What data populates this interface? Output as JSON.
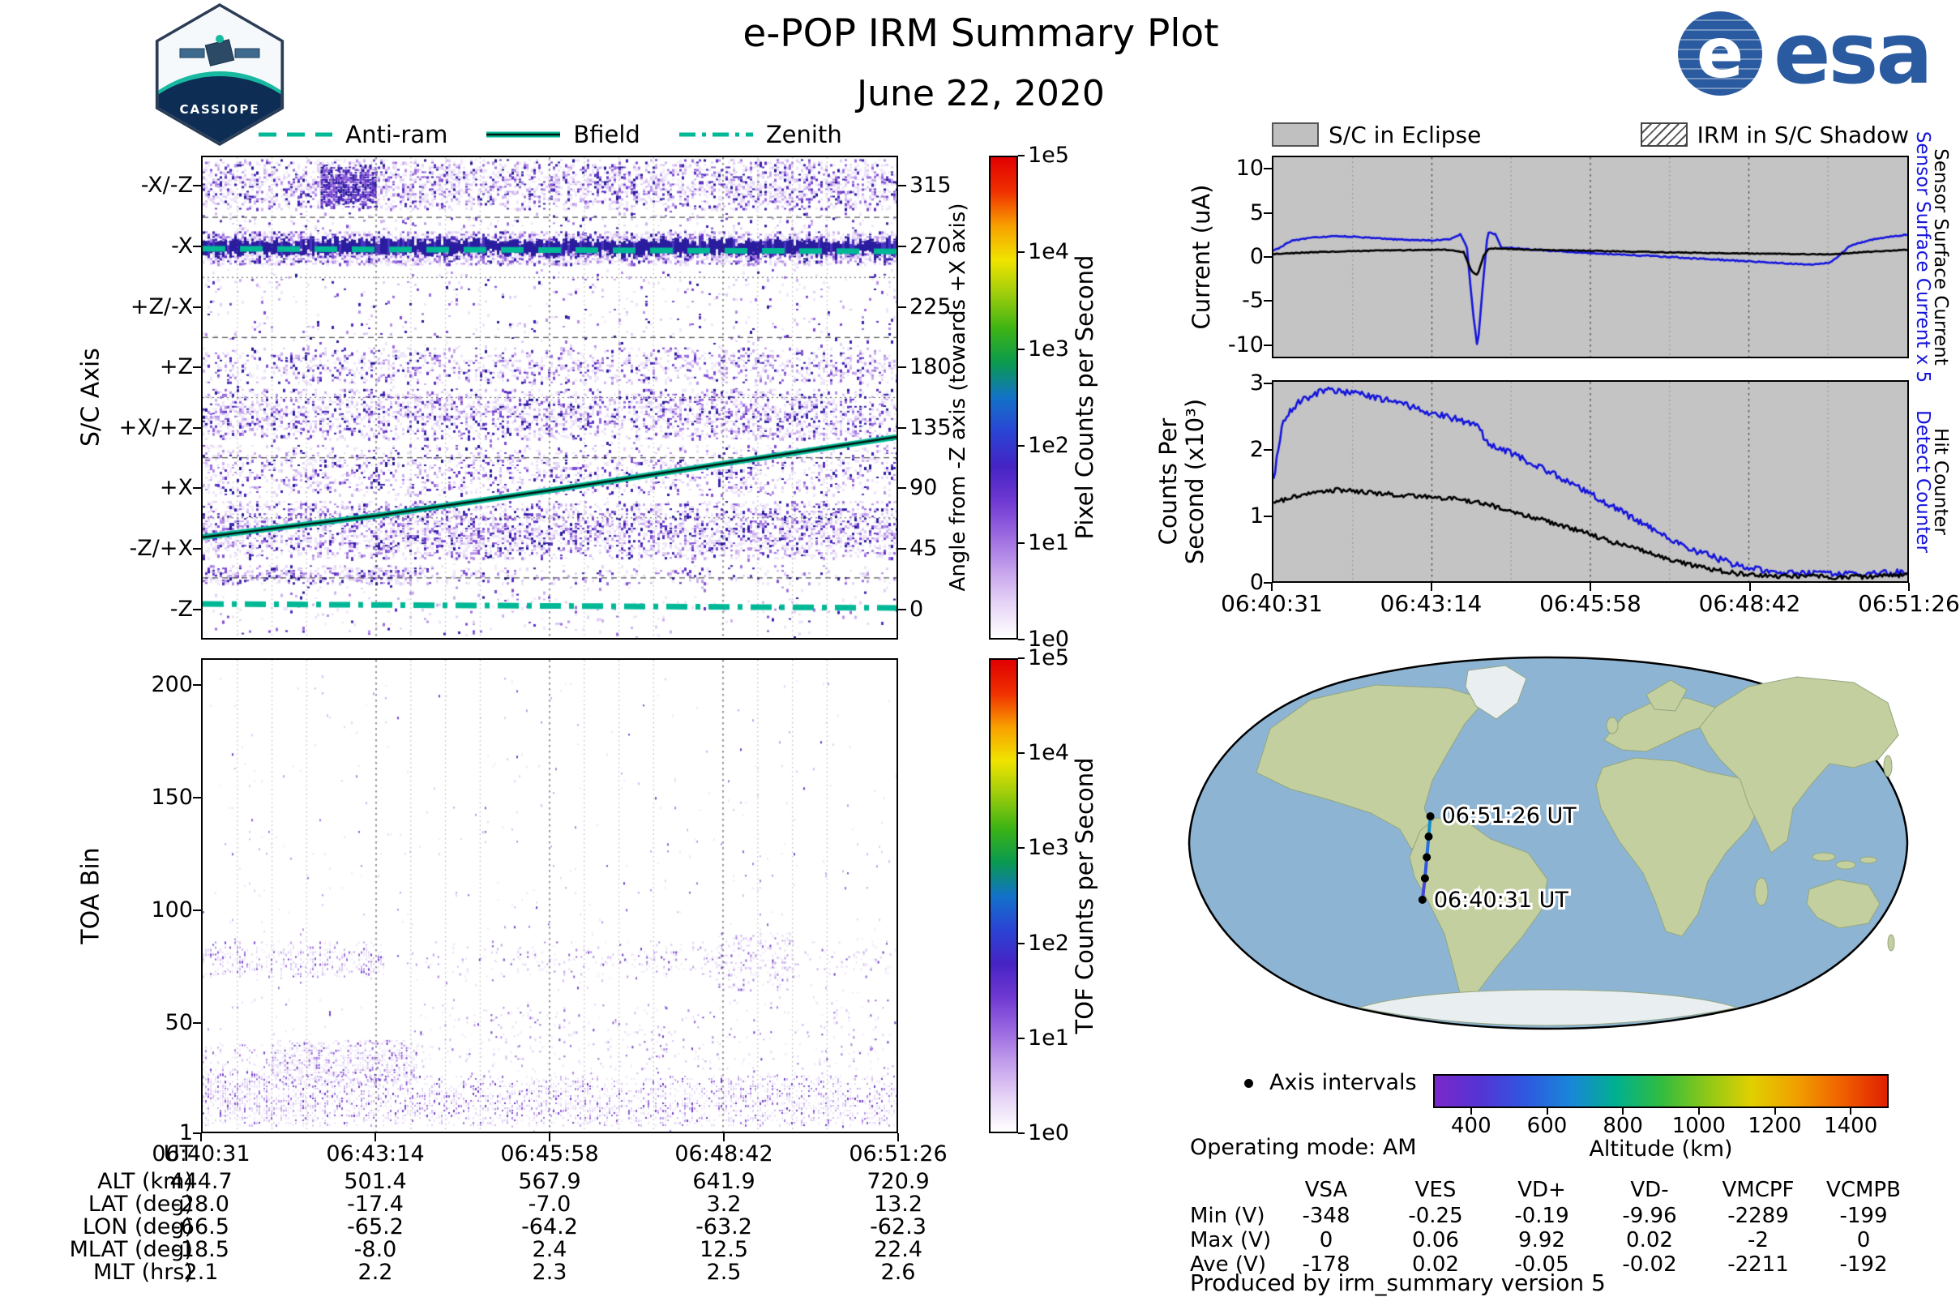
{
  "header": {
    "title": "e-POP IRM Summary Plot",
    "date": "June 22, 2020",
    "badge_text": "CASSIOPE",
    "esa_text": "esa"
  },
  "colors": {
    "teal": "#00b896",
    "series_blue": "#1515dd",
    "eclipse_gray": "#c4c4c4",
    "ocean": "#8db5d3",
    "land": "#c3cf9f",
    "ice": "#e9eef1",
    "spectral_stops": [
      "#ffffff",
      "#e6d4f6",
      "#c4a0ec",
      "#9a68e0",
      "#6f38d2",
      "#4524c4",
      "#2a44d4",
      "#1272c8",
      "#0a9a50",
      "#3cb414",
      "#9ccc0c",
      "#f0e400",
      "#f8a000",
      "#f03000",
      "#e00000"
    ]
  },
  "left_legend": {
    "items": [
      {
        "label": "Anti-ram",
        "style": "dashed"
      },
      {
        "label": "Bfield",
        "style": "solid"
      },
      {
        "label": "Zenith",
        "style": "dashdot"
      }
    ]
  },
  "right_legend": {
    "eclipse": "S/C in Eclipse",
    "shadow": "IRM in S/C Shadow"
  },
  "chart_data": [
    {
      "id": "sc_axis_spectrogram",
      "type": "heatmap",
      "ylabel": "S/C Axis",
      "yticks": [
        "-X/-Z",
        "-X",
        "+Z/-X",
        "+Z",
        "+X/+Z",
        "+X",
        "-Z/+X",
        "-Z"
      ],
      "right_axis_label": "Angle from -Z axis (towards +X axis)",
      "right_yticks": [
        "315",
        "270",
        "225",
        "180",
        "135",
        "90",
        "45",
        "0"
      ],
      "angle_range": [
        -22.5,
        337.5
      ],
      "colorbar": {
        "label": "Pixel Counts per Second",
        "ticks": [
          "1e5",
          "1e4",
          "1e3",
          "1e2",
          "1e1",
          "1e0"
        ]
      },
      "overlays": [
        {
          "name": "Anti-ram",
          "style": "dashed",
          "points": [
            [
              0,
              269
            ],
            [
              1,
              267
            ]
          ]
        },
        {
          "name": "Bfield",
          "style": "solid",
          "points": [
            [
              0,
              53
            ],
            [
              0.25,
              69
            ],
            [
              0.5,
              88
            ],
            [
              0.75,
              108
            ],
            [
              1,
              128
            ]
          ]
        },
        {
          "name": "Zenith",
          "style": "dashdot",
          "points": [
            [
              0,
              3
            ],
            [
              1,
              0
            ]
          ]
        }
      ],
      "bands": [
        {
          "angle": [
            298,
            336
          ],
          "density": 0.5
        },
        {
          "angle": [
            283,
            296
          ],
          "density": 0.08
        },
        {
          "angle": [
            258,
            282
          ],
          "density": 0.9,
          "dark": true
        },
        {
          "angle": [
            226,
            252
          ],
          "density": 0.05
        },
        {
          "angle": [
            196,
            224
          ],
          "density": 0.04
        },
        {
          "angle": [
            168,
            195
          ],
          "density": 0.32
        },
        {
          "angle": [
            126,
            164
          ],
          "density": 0.45
        },
        {
          "angle": [
            84,
            122
          ],
          "density": 0.3
        },
        {
          "angle": [
            38,
            80
          ],
          "density": 0.5
        },
        {
          "angle": [
            18,
            32
          ],
          "density": 0.5,
          "xprofile": [
            [
              0,
              1
            ],
            [
              0.3,
              1
            ],
            [
              0.33,
              0.3
            ],
            [
              1,
              0.3
            ]
          ]
        },
        {
          "angle": [
            -20,
            16
          ],
          "density": 0.04
        }
      ],
      "patches": [
        {
          "angle": [
            300,
            332
          ],
          "x": [
            0.17,
            0.25
          ],
          "density": 0.85
        }
      ]
    },
    {
      "id": "toa_spectrogram",
      "type": "heatmap",
      "ylabel": "TOA Bin",
      "yticks": [
        "200",
        "150",
        "100",
        "50",
        "1"
      ],
      "ytick_values": [
        200,
        150,
        100,
        50,
        1
      ],
      "bin_range": [
        1,
        212
      ],
      "colorbar": {
        "label": "TOF Counts per Second",
        "ticks": [
          "1e5",
          "1e4",
          "1e3",
          "1e2",
          "1e1",
          "1e0"
        ]
      },
      "features": [
        {
          "bin": [
            4,
            26
          ],
          "x": [
            0,
            1
          ],
          "density": 0.45
        },
        {
          "bin": [
            22,
            42
          ],
          "x": [
            0.1,
            0.31
          ],
          "density": 0.6
        },
        {
          "bin": [
            26,
            60
          ],
          "x": [
            0.31,
            1
          ],
          "density": 0.07
        },
        {
          "bin": [
            8,
            40
          ],
          "x": [
            0,
            0.1
          ],
          "density": 0.25
        },
        {
          "bin": [
            70,
            86
          ],
          "x": [
            0,
            0.26
          ],
          "density": 0.35
        },
        {
          "bin": [
            70,
            86
          ],
          "x": [
            0.3,
            0.45
          ],
          "density": 0.05
        },
        {
          "bin": [
            70,
            86
          ],
          "x": [
            0.45,
            0.74
          ],
          "density": 0.15
        },
        {
          "bin": [
            64,
            90
          ],
          "x": [
            0.74,
            0.85
          ],
          "density": 0.3
        },
        {
          "bin": [
            70,
            86
          ],
          "x": [
            0.85,
            1
          ],
          "density": 0.12
        },
        {
          "bin": [
            1,
            205
          ],
          "x": [
            0,
            1
          ],
          "density": 0.012
        }
      ]
    },
    {
      "id": "sensor_current",
      "type": "line",
      "ylabel": "Current (uA)",
      "ylim": [
        -11.5,
        11.5
      ],
      "yticks": [
        "10",
        "5",
        "0",
        "-5",
        "-10"
      ],
      "ytick_values": [
        10,
        5,
        0,
        -5,
        -10
      ],
      "right_labels": [
        {
          "text": "Sensor Surface Current x 5",
          "color": "#1515dd"
        },
        {
          "text": "Sensor Surface Current",
          "color": "#000000"
        }
      ],
      "xticks": [
        "06:40:31",
        "06:43:14",
        "06:45:58",
        "06:48:42",
        "06:51:26"
      ],
      "series": [
        {
          "name": "Sensor Surface Current x 5",
          "color": "#1515dd",
          "noise": 0.07,
          "points": [
            [
              0,
              0.7
            ],
            [
              0.03,
              1.9
            ],
            [
              0.07,
              2.3
            ],
            [
              0.11,
              2.4
            ],
            [
              0.15,
              2.2
            ],
            [
              0.2,
              2.0
            ],
            [
              0.25,
              1.9
            ],
            [
              0.28,
              2.1
            ],
            [
              0.295,
              2.6
            ],
            [
              0.305,
              1.2
            ],
            [
              0.315,
              -6.5
            ],
            [
              0.322,
              -10.6
            ],
            [
              0.33,
              -3.5
            ],
            [
              0.338,
              2.9
            ],
            [
              0.35,
              2.6
            ],
            [
              0.36,
              1.1
            ],
            [
              0.42,
              0.8
            ],
            [
              0.5,
              0.45
            ],
            [
              0.6,
              0.1
            ],
            [
              0.7,
              -0.3
            ],
            [
              0.8,
              -0.7
            ],
            [
              0.85,
              -0.9
            ],
            [
              0.88,
              -0.6
            ],
            [
              0.91,
              1.3
            ],
            [
              0.95,
              2.1
            ],
            [
              1,
              2.6
            ]
          ]
        },
        {
          "name": "Sensor Surface Current",
          "color": "#000000",
          "noise": 0.05,
          "points": [
            [
              0,
              0.35
            ],
            [
              0.08,
              0.6
            ],
            [
              0.18,
              0.75
            ],
            [
              0.27,
              0.85
            ],
            [
              0.3,
              0.55
            ],
            [
              0.312,
              -1.6
            ],
            [
              0.322,
              -2.1
            ],
            [
              0.332,
              0.2
            ],
            [
              0.34,
              1.0
            ],
            [
              0.4,
              0.85
            ],
            [
              0.5,
              0.7
            ],
            [
              0.65,
              0.5
            ],
            [
              0.8,
              0.35
            ],
            [
              0.88,
              0.3
            ],
            [
              0.93,
              0.55
            ],
            [
              1,
              0.85
            ]
          ]
        }
      ]
    },
    {
      "id": "counters",
      "type": "line",
      "ylabel_lines": [
        "Counts Per",
        "Second (x10³)"
      ],
      "ylim": [
        0,
        3.05
      ],
      "yticks": [
        "3",
        "2",
        "1",
        "0"
      ],
      "ytick_values": [
        3,
        2,
        1,
        0
      ],
      "right_labels": [
        {
          "text": "Detect Counter",
          "color": "#1515dd"
        },
        {
          "text": "Hit Counter",
          "color": "#000000"
        }
      ],
      "xticks": [
        "06:40:31",
        "06:43:14",
        "06:45:58",
        "06:48:42",
        "06:51:26"
      ],
      "series": [
        {
          "name": "Detect Counter",
          "color": "#1515dd",
          "noise": 0.05,
          "points": [
            [
              0,
              1.55
            ],
            [
              0.015,
              2.45
            ],
            [
              0.04,
              2.75
            ],
            [
              0.08,
              2.92
            ],
            [
              0.12,
              2.88
            ],
            [
              0.16,
              2.82
            ],
            [
              0.2,
              2.72
            ],
            [
              0.24,
              2.6
            ],
            [
              0.28,
              2.5
            ],
            [
              0.31,
              2.42
            ],
            [
              0.325,
              2.38
            ],
            [
              0.335,
              2.12
            ],
            [
              0.37,
              1.98
            ],
            [
              0.42,
              1.75
            ],
            [
              0.47,
              1.5
            ],
            [
              0.52,
              1.22
            ],
            [
              0.57,
              0.95
            ],
            [
              0.62,
              0.68
            ],
            [
              0.67,
              0.45
            ],
            [
              0.72,
              0.28
            ],
            [
              0.77,
              0.17
            ],
            [
              0.82,
              0.13
            ],
            [
              0.9,
              0.1
            ],
            [
              1,
              0.14
            ]
          ]
        },
        {
          "name": "Hit Counter",
          "color": "#000000",
          "noise": 0.035,
          "points": [
            [
              0,
              1.2
            ],
            [
              0.05,
              1.33
            ],
            [
              0.1,
              1.4
            ],
            [
              0.16,
              1.35
            ],
            [
              0.22,
              1.3
            ],
            [
              0.28,
              1.27
            ],
            [
              0.33,
              1.2
            ],
            [
              0.38,
              1.05
            ],
            [
              0.43,
              0.92
            ],
            [
              0.48,
              0.78
            ],
            [
              0.53,
              0.62
            ],
            [
              0.58,
              0.47
            ],
            [
              0.63,
              0.32
            ],
            [
              0.68,
              0.2
            ],
            [
              0.73,
              0.12
            ],
            [
              0.8,
              0.08
            ],
            [
              0.9,
              0.06
            ],
            [
              1,
              0.09
            ]
          ]
        }
      ]
    }
  ],
  "ephemeris": {
    "rows": [
      {
        "label": "UT",
        "values": [
          "06:40:31",
          "06:43:14",
          "06:45:58",
          "06:48:42",
          "06:51:26"
        ]
      },
      {
        "label": "ALT (km)",
        "values": [
          "444.7",
          "501.4",
          "567.9",
          "641.9",
          "720.9"
        ]
      },
      {
        "label": "LAT (deg)",
        "values": [
          "-28.0",
          "-17.4",
          "-7.0",
          "3.2",
          "13.2"
        ]
      },
      {
        "label": "LON (deg)",
        "values": [
          "-66.5",
          "-65.2",
          "-64.2",
          "-63.2",
          "-62.3"
        ]
      },
      {
        "label": "MLAT (deg)",
        "values": [
          "-18.5",
          "-8.0",
          "2.4",
          "12.5",
          "22.4"
        ]
      },
      {
        "label": "MLT (hrs)",
        "values": [
          "2.1",
          "2.2",
          "2.3",
          "2.5",
          "2.6"
        ]
      }
    ]
  },
  "map": {
    "labels": {
      "start": "06:40:31 UT",
      "end": "06:51:26 UT"
    },
    "axis_intervals": "Axis intervals",
    "operating_mode": "Operating mode: AM",
    "altitude_bar": {
      "label": "Altitude (km)",
      "ticks": [
        "400",
        "600",
        "800",
        "1000",
        "1200",
        "1400"
      ],
      "tick_values": [
        400,
        600,
        800,
        1000,
        1200,
        1400
      ],
      "range": [
        300,
        1500
      ],
      "stops": [
        "#7a28c8",
        "#5534d4",
        "#2f58e0",
        "#1a86d8",
        "#00b090",
        "#30bc40",
        "#8cc818",
        "#e0d000",
        "#f0a000",
        "#f06000",
        "#e02000"
      ]
    },
    "track": {
      "lon": [
        -66.5,
        -65.2,
        -64.2,
        -63.2,
        -62.3
      ],
      "lat": [
        -28.0,
        -17.4,
        -7.0,
        3.2,
        13.2
      ],
      "alt_km": [
        444.7,
        501.4,
        567.9,
        641.9,
        720.9
      ]
    }
  },
  "voltage_table": {
    "col_headers": [
      "VSA",
      "VES",
      "VD+",
      "VD-",
      "VMCPF",
      "VCMPB"
    ],
    "rows": [
      {
        "label": "Min (V)",
        "values": [
          "-348",
          "-0.25",
          "-0.19",
          "-9.96",
          "-2289",
          "-199"
        ]
      },
      {
        "label": "Max (V)",
        "values": [
          "0",
          "0.06",
          "9.92",
          "0.02",
          "-2",
          "0"
        ]
      },
      {
        "label": "Ave (V)",
        "values": [
          "-178",
          "0.02",
          "-0.05",
          "-0.02",
          "-2211",
          "-192"
        ]
      }
    ]
  },
  "footer": {
    "credit": "Produced by irm_summary version 5"
  }
}
